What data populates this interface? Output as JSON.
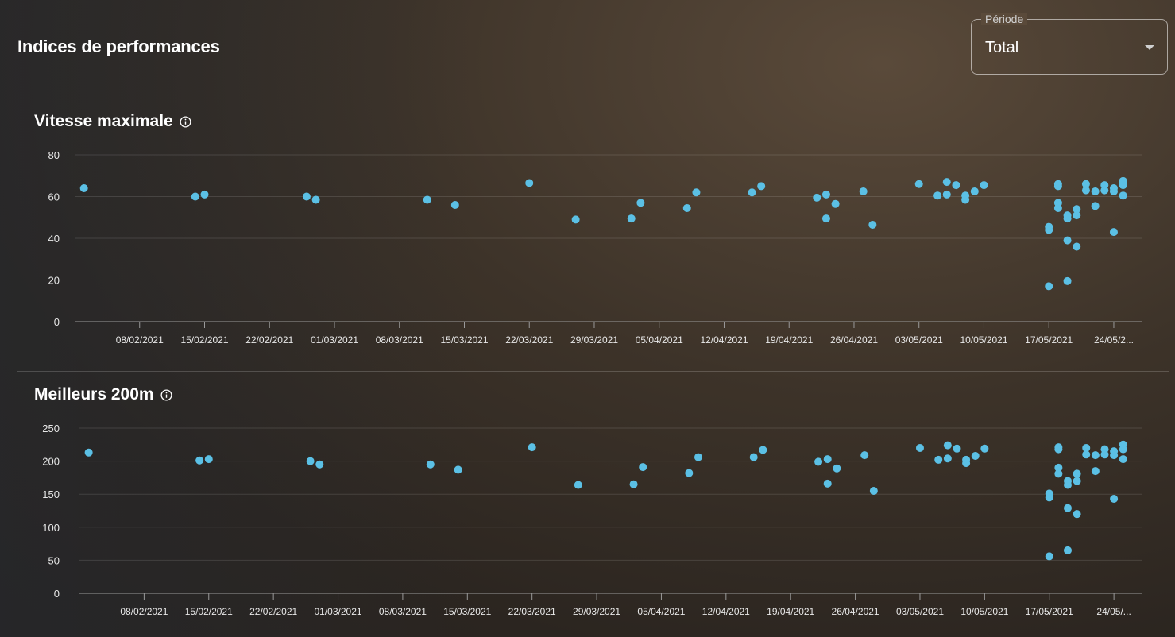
{
  "page": {
    "title": "Indices de performances"
  },
  "period": {
    "label": "Période",
    "value": "Total"
  },
  "colors": {
    "point": "#5bc0e5",
    "grid": "rgba(255,255,255,0.12)",
    "axis": "#9a9a9a"
  },
  "icons": {
    "info": "info-icon",
    "dropdown": "caret-down-icon"
  },
  "chart_data": [
    {
      "type": "scatter",
      "title": "Vitesse maximale",
      "x_range": [
        "2021-02-01",
        "2021-05-27"
      ],
      "ylim": [
        0,
        80
      ],
      "yticks": [
        0,
        20,
        40,
        60,
        80
      ],
      "grid": true,
      "xticks": [
        "2021-02-08",
        "2021-02-15",
        "2021-02-22",
        "2021-03-01",
        "2021-03-08",
        "2021-03-15",
        "2021-03-22",
        "2021-03-29",
        "2021-04-05",
        "2021-04-12",
        "2021-04-19",
        "2021-04-26",
        "2021-05-03",
        "2021-05-10",
        "2021-05-17",
        "2021-05-24"
      ],
      "xtick_labels": [
        "08/02/2021",
        "15/02/2021",
        "22/02/2021",
        "01/03/2021",
        "08/03/2021",
        "15/03/2021",
        "22/03/2021",
        "29/03/2021",
        "05/04/2021",
        "12/04/2021",
        "19/04/2021",
        "26/04/2021",
        "03/05/2021",
        "10/05/2021",
        "17/05/2021",
        "24/05/2..."
      ],
      "points": [
        [
          "2021-02-02",
          64
        ],
        [
          "2021-02-14",
          60
        ],
        [
          "2021-02-15",
          61
        ],
        [
          "2021-02-26",
          60
        ],
        [
          "2021-02-27",
          58.5
        ],
        [
          "2021-03-11",
          58.5
        ],
        [
          "2021-03-14",
          56
        ],
        [
          "2021-03-22",
          66.5
        ],
        [
          "2021-03-27",
          49
        ],
        [
          "2021-04-02",
          49.5
        ],
        [
          "2021-04-03",
          57
        ],
        [
          "2021-04-08",
          54.5
        ],
        [
          "2021-04-09",
          62
        ],
        [
          "2021-04-15",
          62
        ],
        [
          "2021-04-16",
          65
        ],
        [
          "2021-04-22",
          59.5
        ],
        [
          "2021-04-23",
          61
        ],
        [
          "2021-04-23",
          49.5
        ],
        [
          "2021-04-24",
          56.5
        ],
        [
          "2021-04-27",
          62.5
        ],
        [
          "2021-04-28",
          46.5
        ],
        [
          "2021-05-03",
          66
        ],
        [
          "2021-05-05",
          60.5
        ],
        [
          "2021-05-06",
          67
        ],
        [
          "2021-05-06",
          61
        ],
        [
          "2021-05-07",
          65.5
        ],
        [
          "2021-05-08",
          58.5
        ],
        [
          "2021-05-08",
          60.5
        ],
        [
          "2021-05-09",
          62.5
        ],
        [
          "2021-05-10",
          65.5
        ],
        [
          "2021-05-17",
          45.5
        ],
        [
          "2021-05-17",
          44
        ],
        [
          "2021-05-17",
          17
        ],
        [
          "2021-05-18",
          66
        ],
        [
          "2021-05-18",
          65
        ],
        [
          "2021-05-18",
          57
        ],
        [
          "2021-05-18",
          54.5
        ],
        [
          "2021-05-19",
          51
        ],
        [
          "2021-05-19",
          49.5
        ],
        [
          "2021-05-19",
          39
        ],
        [
          "2021-05-19",
          19.5
        ],
        [
          "2021-05-20",
          54
        ],
        [
          "2021-05-20",
          51
        ],
        [
          "2021-05-20",
          36
        ],
        [
          "2021-05-21",
          66
        ],
        [
          "2021-05-21",
          63
        ],
        [
          "2021-05-22",
          62.5
        ],
        [
          "2021-05-22",
          55.5
        ],
        [
          "2021-05-23",
          65.5
        ],
        [
          "2021-05-23",
          63
        ],
        [
          "2021-05-24",
          64
        ],
        [
          "2021-05-24",
          62.5
        ],
        [
          "2021-05-24",
          43
        ],
        [
          "2021-05-25",
          67.5
        ],
        [
          "2021-05-25",
          65.5
        ],
        [
          "2021-05-25",
          60.5
        ]
      ]
    },
    {
      "type": "scatter",
      "title": "Meilleurs 200m",
      "x_range": [
        "2021-02-01",
        "2021-05-27"
      ],
      "ylim": [
        0,
        250
      ],
      "yticks": [
        0,
        50,
        100,
        150,
        200,
        250
      ],
      "grid": true,
      "xticks": [
        "2021-02-08",
        "2021-02-15",
        "2021-02-22",
        "2021-03-01",
        "2021-03-08",
        "2021-03-15",
        "2021-03-22",
        "2021-03-29",
        "2021-04-05",
        "2021-04-12",
        "2021-04-19",
        "2021-04-26",
        "2021-05-03",
        "2021-05-10",
        "2021-05-17",
        "2021-05-24"
      ],
      "xtick_labels": [
        "08/02/2021",
        "15/02/2021",
        "22/02/2021",
        "01/03/2021",
        "08/03/2021",
        "15/03/2021",
        "22/03/2021",
        "29/03/2021",
        "05/04/2021",
        "12/04/2021",
        "19/04/2021",
        "26/04/2021",
        "03/05/2021",
        "10/05/2021",
        "17/05/2021",
        "24/05/..."
      ],
      "points": [
        [
          "2021-02-02",
          213
        ],
        [
          "2021-02-14",
          201
        ],
        [
          "2021-02-15",
          203
        ],
        [
          "2021-02-26",
          200
        ],
        [
          "2021-02-27",
          195
        ],
        [
          "2021-03-11",
          195
        ],
        [
          "2021-03-14",
          187
        ],
        [
          "2021-03-22",
          221
        ],
        [
          "2021-03-27",
          164
        ],
        [
          "2021-04-02",
          165
        ],
        [
          "2021-04-03",
          191
        ],
        [
          "2021-04-08",
          182
        ],
        [
          "2021-04-09",
          206
        ],
        [
          "2021-04-15",
          206
        ],
        [
          "2021-04-16",
          217
        ],
        [
          "2021-04-22",
          199
        ],
        [
          "2021-04-23",
          203
        ],
        [
          "2021-04-23",
          166
        ],
        [
          "2021-04-24",
          189
        ],
        [
          "2021-04-27",
          209
        ],
        [
          "2021-04-28",
          155
        ],
        [
          "2021-05-03",
          220
        ],
        [
          "2021-05-05",
          202
        ],
        [
          "2021-05-06",
          224
        ],
        [
          "2021-05-06",
          204
        ],
        [
          "2021-05-07",
          219
        ],
        [
          "2021-05-08",
          197
        ],
        [
          "2021-05-08",
          202
        ],
        [
          "2021-05-09",
          208
        ],
        [
          "2021-05-10",
          219
        ],
        [
          "2021-05-17",
          151
        ],
        [
          "2021-05-17",
          145
        ],
        [
          "2021-05-17",
          56
        ],
        [
          "2021-05-18",
          221
        ],
        [
          "2021-05-18",
          218
        ],
        [
          "2021-05-18",
          190
        ],
        [
          "2021-05-18",
          181
        ],
        [
          "2021-05-19",
          170
        ],
        [
          "2021-05-19",
          164
        ],
        [
          "2021-05-19",
          129
        ],
        [
          "2021-05-19",
          65
        ],
        [
          "2021-05-20",
          181
        ],
        [
          "2021-05-20",
          170
        ],
        [
          "2021-05-20",
          120
        ],
        [
          "2021-05-21",
          220
        ],
        [
          "2021-05-21",
          210
        ],
        [
          "2021-05-22",
          209
        ],
        [
          "2021-05-22",
          185
        ],
        [
          "2021-05-23",
          218
        ],
        [
          "2021-05-23",
          210
        ],
        [
          "2021-05-24",
          215
        ],
        [
          "2021-05-24",
          209
        ],
        [
          "2021-05-24",
          143
        ],
        [
          "2021-05-25",
          225
        ],
        [
          "2021-05-25",
          218
        ],
        [
          "2021-05-25",
          203
        ]
      ]
    }
  ]
}
